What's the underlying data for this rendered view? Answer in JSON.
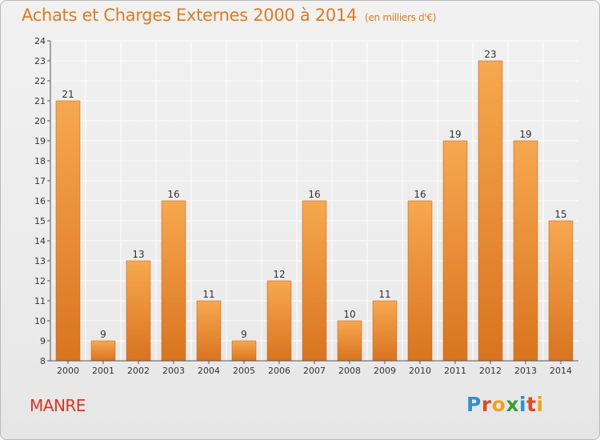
{
  "header": {
    "title": "Achats et Charges Externes 2000 à 2014",
    "unit": "(en milliers d'€)"
  },
  "footer": {
    "commune": "MANRE",
    "logo_letters": [
      "P",
      "r",
      "o",
      "x",
      "i",
      "t",
      "i"
    ],
    "logo_colors": [
      "#2f8fd0",
      "#e04a1e",
      "#f0a21e",
      "#3a9e3a",
      "#2f8fd0",
      "#e04a1e",
      "#f0a21e"
    ]
  },
  "colors": {
    "bar_light": "#f7a850",
    "bar_dark": "#d9741e",
    "bar_stroke": "#c8691c",
    "title": "#e07a20",
    "commune": "#e0331e",
    "grid": "#ffffff"
  },
  "chart_data": {
    "type": "bar",
    "title": "Achats et Charges Externes 2000 à 2014",
    "subtitle": "(en milliers d'€)",
    "categories": [
      "2000",
      "2001",
      "2002",
      "2003",
      "2004",
      "2005",
      "2006",
      "2007",
      "2008",
      "2009",
      "2010",
      "2011",
      "2012",
      "2013",
      "2014"
    ],
    "values": [
      21,
      9,
      13,
      16,
      11,
      9,
      12,
      16,
      10,
      11,
      16,
      19,
      23,
      19,
      15
    ],
    "ylim": [
      8,
      24
    ],
    "yticks": [
      8,
      9,
      10,
      11,
      12,
      13,
      14,
      15,
      16,
      17,
      18,
      19,
      20,
      21,
      22,
      23,
      24
    ],
    "grid": true,
    "legend": "none"
  }
}
